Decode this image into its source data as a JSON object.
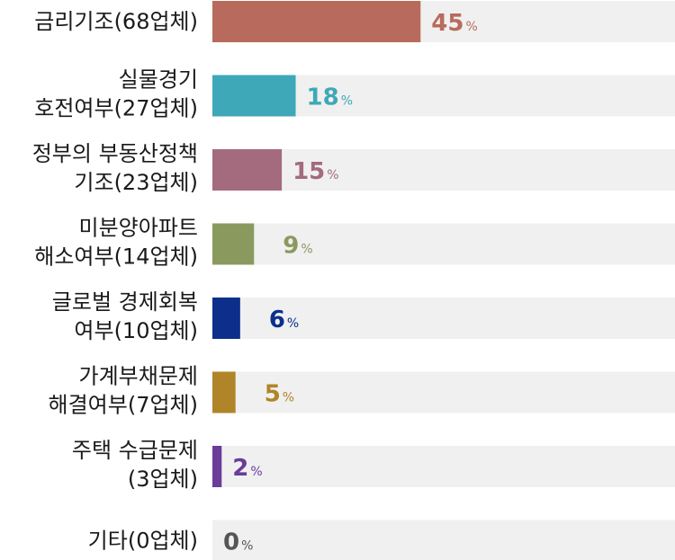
{
  "chart_data": {
    "type": "bar",
    "orientation": "horizontal",
    "unit": "%",
    "xlim": [
      0,
      100
    ],
    "track_color": "#f0f0f0",
    "categories": [
      {
        "lines": [
          "금리기조(68업체)"
        ],
        "value": 45,
        "color": "#b86b5c"
      },
      {
        "lines": [
          "실물경기",
          "호전여부(27업체)"
        ],
        "value": 18,
        "color": "#3ea8b8"
      },
      {
        "lines": [
          "정부의 부동산정책",
          "기조(23업체)"
        ],
        "value": 15,
        "color": "#a46a7e"
      },
      {
        "lines": [
          "미분양아파트",
          "해소여부(14업체)"
        ],
        "value": 9,
        "color": "#8a9a5f"
      },
      {
        "lines": [
          "글로벌 경제회복",
          "여부(10업체)"
        ],
        "value": 6,
        "color": "#0b2f8a"
      },
      {
        "lines": [
          "가계부채문제",
          "해결여부(7업체)"
        ],
        "value": 5,
        "color": "#b08428"
      },
      {
        "lines": [
          "주택 수급문제",
          "(3업체)"
        ],
        "value": 2,
        "color": "#6b3c99"
      },
      {
        "lines": [
          "기타(0업체)"
        ],
        "value": 0,
        "color": "#555555"
      }
    ]
  }
}
